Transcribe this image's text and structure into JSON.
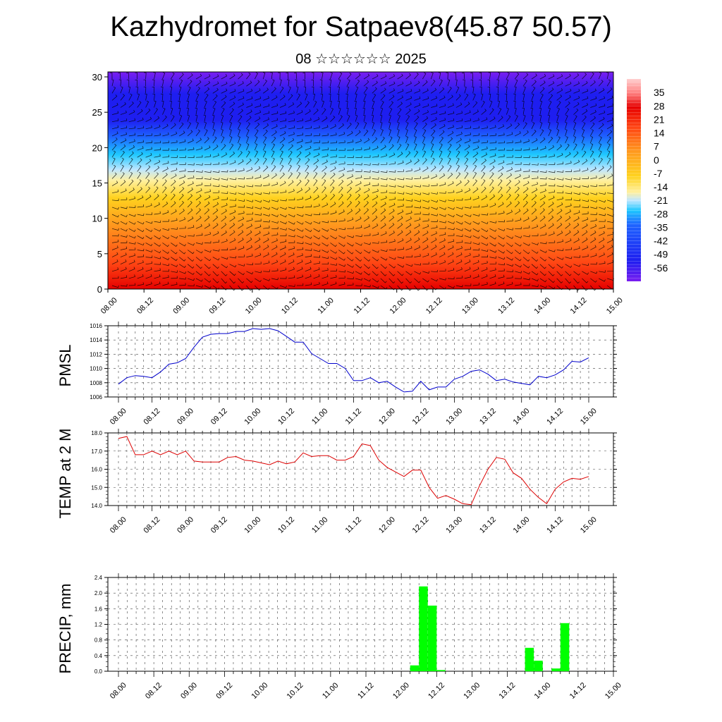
{
  "title": "Kazhydromet for Satpaev8(45.87 50.57)",
  "subtitle": "08 ☆☆☆☆☆☆ 2025",
  "chart_data": [
    {
      "type": "heatmap",
      "title": "",
      "x_tick_labels": [
        "08.00",
        "08.12",
        "09.00",
        "09.12",
        "10.00",
        "10.12",
        "11.00",
        "11.12",
        "12.00",
        "12.12",
        "13.00",
        "13.12",
        "14.00",
        "14.12",
        "15.00"
      ],
      "y_tick_labels": [
        "0",
        "5",
        "10",
        "15",
        "20",
        "25",
        "30"
      ],
      "ylim": [
        0,
        30.7
      ],
      "colorbar_labels": [
        "35",
        "28",
        "21",
        "14",
        "7",
        "0",
        "-7",
        "-14",
        "-21",
        "-28",
        "-35",
        "-42",
        "-49",
        "-56"
      ],
      "colorbar_range": [
        -63,
        42
      ],
      "colormap": [
        "#7a1ef0",
        "#1e1ef0",
        "#1e64ff",
        "#1ec8ff",
        "#bfe6ff",
        "#fff0a0",
        "#ffd21e",
        "#ff9a1e",
        "#ff4614",
        "#e60000",
        "#ff7f7f",
        "#ffcfcf"
      ],
      "wind_barbs": true
    },
    {
      "type": "line",
      "ylabel": "PMSL",
      "x_tick_labels": [
        "08.00",
        "08.12",
        "09.00",
        "09.12",
        "10.00",
        "10.12",
        "11.00",
        "11.12",
        "12.00",
        "12.12",
        "13.00",
        "13.12",
        "14.00",
        "14.12",
        "15.00"
      ],
      "y_tick_labels": [
        "1006",
        "1008",
        "1010",
        "1012",
        "1014",
        "1016"
      ],
      "ylim": [
        1006,
        1016
      ],
      "color": "#0000cc",
      "x_step_hours": 3,
      "values": [
        1007.8,
        1008.7,
        1009.0,
        1008.9,
        1008.7,
        1009.5,
        1010.6,
        1010.8,
        1011.4,
        1013.0,
        1014.4,
        1014.8,
        1014.9,
        1014.9,
        1015.2,
        1015.2,
        1015.6,
        1015.5,
        1015.6,
        1015.3,
        1014.5,
        1013.7,
        1013.7,
        1012.1,
        1011.4,
        1010.7,
        1010.7,
        1010.0,
        1008.3,
        1008.3,
        1008.7,
        1008.0,
        1008.2,
        1007.4,
        1006.7,
        1006.8,
        1008.2,
        1007.0,
        1007.4,
        1007.4,
        1008.5,
        1008.9,
        1009.6,
        1009.8,
        1009.2,
        1008.3,
        1008.5,
        1008.1,
        1007.9,
        1007.7,
        1008.9,
        1008.7,
        1009.1,
        1009.8,
        1011.0,
        1010.9,
        1011.5
      ]
    },
    {
      "type": "line",
      "ylabel": "TEMP at 2 M",
      "x_tick_labels": [
        "08.00",
        "08.12",
        "09.00",
        "09.12",
        "10.00",
        "10.12",
        "11.00",
        "11.12",
        "12.00",
        "12.12",
        "13.00",
        "13.12",
        "14.00",
        "14.12",
        "15.00"
      ],
      "y_tick_labels": [
        "14.0",
        "15.0",
        "16.0",
        "17.0",
        "18.0"
      ],
      "ylim": [
        14.0,
        18.0
      ],
      "color": "#dd0000",
      "x_step_hours": 3,
      "values": [
        17.7,
        17.8,
        16.8,
        16.8,
        17.0,
        16.8,
        17.0,
        16.8,
        17.0,
        16.45,
        16.4,
        16.4,
        16.4,
        16.65,
        16.7,
        16.5,
        16.45,
        16.35,
        16.25,
        16.45,
        16.3,
        16.4,
        16.9,
        16.7,
        16.75,
        16.75,
        16.5,
        16.5,
        16.7,
        17.4,
        17.3,
        16.5,
        16.1,
        15.85,
        15.6,
        15.95,
        15.95,
        15.0,
        14.4,
        14.55,
        14.35,
        14.1,
        14.05,
        15.1,
        16.0,
        16.65,
        16.55,
        15.8,
        15.5,
        14.9,
        14.45,
        14.1,
        14.9,
        15.3,
        15.5,
        15.45,
        15.6
      ]
    },
    {
      "type": "bar",
      "ylabel": "PRECIP, mm",
      "x_tick_labels": [
        "08.00",
        "08.12",
        "09.00",
        "09.12",
        "10.00",
        "10.12",
        "11.00",
        "11.12",
        "12.00",
        "12.12",
        "13.00",
        "13.12",
        "14.00",
        "14.12",
        "15.00"
      ],
      "y_tick_labels": [
        "0.0",
        "0.4",
        "0.8",
        "1.2",
        "1.6",
        "2.0",
        "2.4"
      ],
      "ylim": [
        0,
        2.4
      ],
      "color": "#00ff00",
      "bar_width_hours": 3,
      "bars": [
        {
          "x": 12.125,
          "value": 0.15
        },
        {
          "x": 12.25,
          "value": 2.17
        },
        {
          "x": 12.375,
          "value": 1.68
        },
        {
          "x": 12.5,
          "value": 0.03
        },
        {
          "x": 13.75,
          "value": 0.6
        },
        {
          "x": 13.875,
          "value": 0.27
        },
        {
          "x": 14.125,
          "value": 0.07
        },
        {
          "x": 14.25,
          "value": 1.23
        }
      ]
    }
  ]
}
